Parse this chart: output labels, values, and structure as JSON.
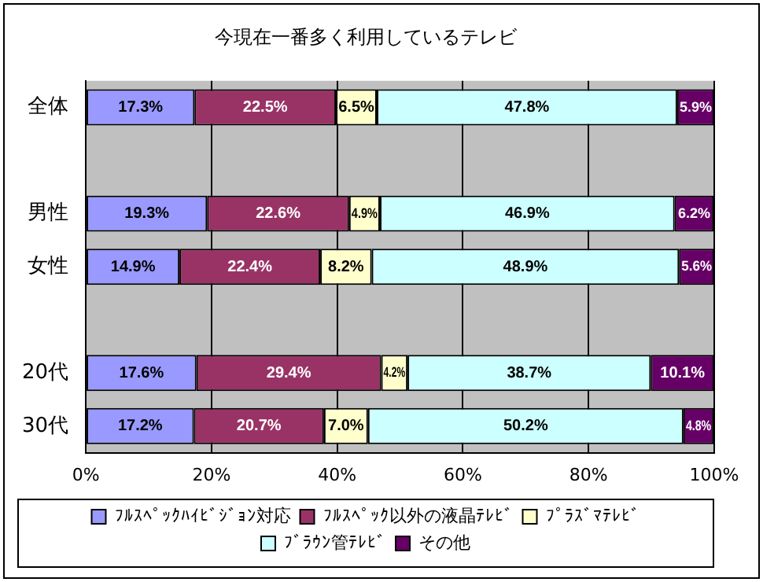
{
  "chart_data": {
    "type": "bar",
    "title": "今現在一番多く利用しているテレビ",
    "orientation": "horizontal",
    "stacked": true,
    "categories": [
      "全体",
      null,
      "男性",
      "女性",
      null,
      "20代",
      "30代"
    ],
    "series": [
      {
        "name": "ﾌﾙｽﾍﾟｯｸﾊｲﾋﾞｼﾞｮﾝ対応",
        "color": "#9999ff",
        "values": [
          17.3,
          null,
          19.3,
          14.9,
          null,
          17.6,
          17.2
        ],
        "value_labels": [
          "17.3%",
          null,
          "19.3%",
          "14.9%",
          null,
          "17.6%",
          "17.2%"
        ]
      },
      {
        "name": "ﾌﾙｽﾍﾟｯｸ以外の液晶ﾃﾚﾋﾞ",
        "color": "#993366",
        "values": [
          22.5,
          null,
          22.6,
          22.4,
          null,
          29.4,
          20.7
        ],
        "value_labels": [
          "22.5%",
          null,
          "22.6%",
          "22.4%",
          null,
          "29.4%",
          "20.7%"
        ]
      },
      {
        "name": "ﾌﾟﾗｽﾞﾏﾃﾚﾋﾞ",
        "color": "#ffffcc",
        "values": [
          6.5,
          null,
          4.9,
          8.2,
          null,
          4.2,
          7.0
        ],
        "value_labels": [
          "6.5%",
          null,
          "4.9%",
          "8.2%",
          null,
          "4.2%",
          "7.0%"
        ]
      },
      {
        "name": "ﾌﾞﾗｳﾝ管ﾃﾚﾋﾞ",
        "color": "#ccffff",
        "values": [
          47.8,
          null,
          46.9,
          48.9,
          null,
          38.7,
          50.2
        ],
        "value_labels": [
          "47.8%",
          null,
          "46.9%",
          "48.9%",
          null,
          "38.7%",
          "50.2%"
        ]
      },
      {
        "name": "その他",
        "color": "#660066",
        "values": [
          5.9,
          null,
          6.2,
          5.6,
          null,
          10.1,
          4.8
        ],
        "value_labels": [
          "5.9%",
          null,
          "6.2%",
          "5.6%",
          null,
          "10.1%",
          "4.8%"
        ]
      }
    ],
    "xlim": [
      0,
      100
    ],
    "xticks": [
      {
        "value": 0,
        "label": "0%"
      },
      {
        "value": 20,
        "label": "20%"
      },
      {
        "value": 40,
        "label": "40%"
      },
      {
        "value": 60,
        "label": "60%"
      },
      {
        "value": 80,
        "label": "80%"
      },
      {
        "value": 100,
        "label": "100%"
      }
    ],
    "grid": "x",
    "legend": "bottom"
  }
}
